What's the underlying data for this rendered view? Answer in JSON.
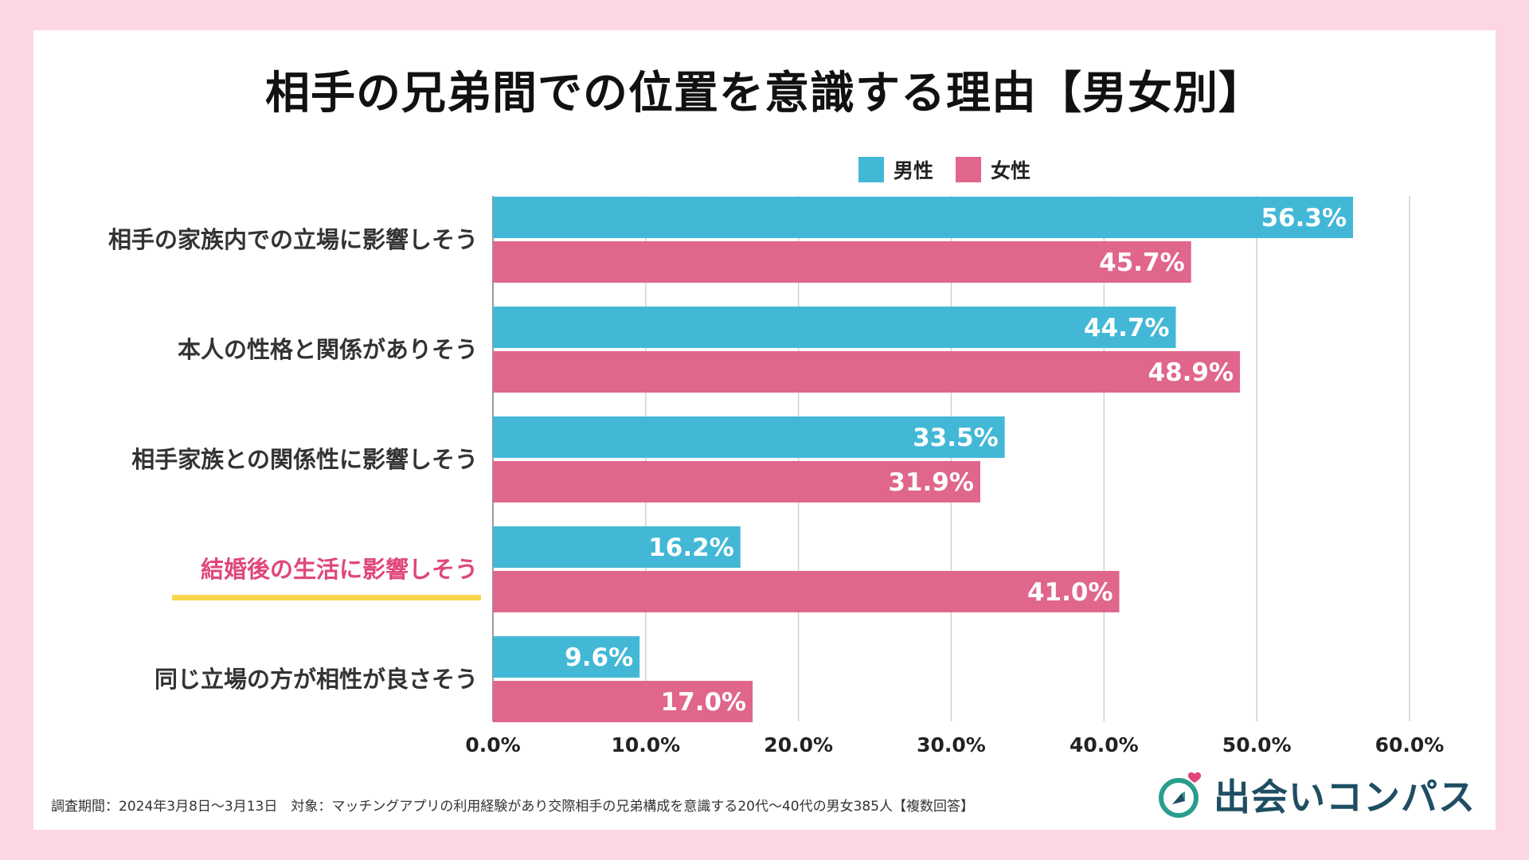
{
  "title": "相手の兄弟間での位置を意識する理由【男女別】",
  "legend": {
    "male": "男性",
    "female": "女性"
  },
  "colors": {
    "male": "#42b8d6",
    "female": "#e0668c",
    "highlight_text": "#e0467a",
    "highlight_underline": "#f7d64a",
    "grid": "#d0d0d0",
    "background": "#fdd6e6"
  },
  "chart_data": {
    "type": "bar",
    "orientation": "horizontal",
    "title": "相手の兄弟間での位置を意識する理由【男女別】",
    "categories": [
      "相手の家族内での立場に影響しそう",
      "本人の性格と関係がありそう",
      "相手家族との関係性に影響しそう",
      "結婚後の生活に影響しそう",
      "同じ立場の方が相性が良さそう"
    ],
    "series": [
      {
        "name": "男性",
        "values": [
          56.3,
          44.7,
          33.5,
          16.2,
          9.6
        ]
      },
      {
        "name": "女性",
        "values": [
          45.7,
          48.9,
          31.9,
          41.0,
          17.0
        ]
      }
    ],
    "value_labels": {
      "男性": [
        "56.3%",
        "44.7%",
        "33.5%",
        "16.2%",
        "9.6%"
      ],
      "女性": [
        "45.7%",
        "48.9%",
        "31.9%",
        "41.0%",
        "17.0%"
      ]
    },
    "highlight_category": "結婚後の生活に影響しそう",
    "xlim": [
      0,
      60
    ],
    "xticks": [
      "0.0%",
      "10.0%",
      "20.0%",
      "30.0%",
      "40.0%",
      "50.0%",
      "60.0%"
    ],
    "grid": true,
    "legend_position": "top-right"
  },
  "footer": {
    "note": "調査期間：2024年3月8日〜3月13日　対象：マッチングアプリの利用経験があり交際相手の兄弟構成を意識する20代〜40代の男女385人【複数回答】"
  },
  "logo": {
    "icon": "compass-heart-icon",
    "text": "出会いコンパス"
  }
}
